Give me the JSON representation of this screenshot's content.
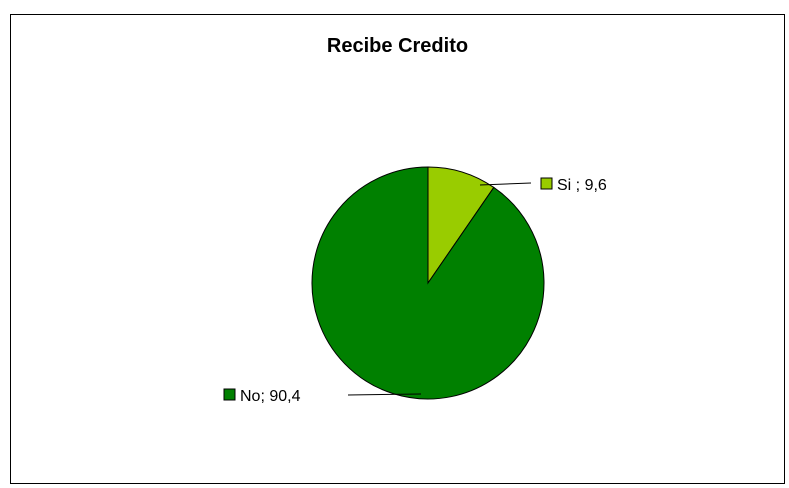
{
  "chart_data": {
    "type": "pie",
    "title": "Recibe Credito",
    "slices": [
      {
        "name": "Si",
        "label": "Si ; 9,6",
        "value": 9.6,
        "color": "#99cc00"
      },
      {
        "name": "No",
        "label": "No; 90,4",
        "value": 90.4,
        "color": "#008000"
      }
    ],
    "legend": "none",
    "data_labels": "outside-with-leader-lines"
  }
}
